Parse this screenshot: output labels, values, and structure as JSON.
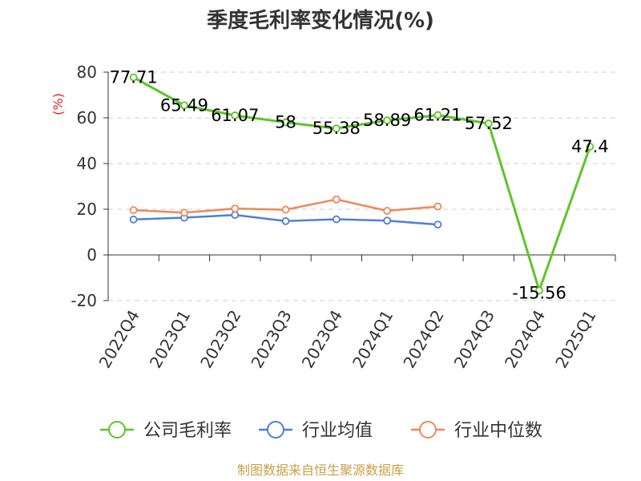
{
  "chart_data": {
    "type": "line",
    "title": "季度毛利率变化情况(%)",
    "unit_label": "(%)",
    "source": "制图数据来自恒生聚源数据库",
    "ylim": [
      -20,
      80
    ],
    "yticks": [
      -20,
      0,
      20,
      40,
      60,
      80
    ],
    "grid": true,
    "legend_position": "bottom",
    "categories": [
      "2022Q4",
      "2023Q1",
      "2023Q2",
      "2023Q3",
      "2023Q4",
      "2024Q1",
      "2024Q2",
      "2024Q3",
      "2024Q4",
      "2025Q1"
    ],
    "series": [
      {
        "name": "公司毛利率",
        "color": "#5ec42a",
        "values": [
          77.71,
          65.49,
          61.07,
          58,
          55.38,
          58.89,
          61.21,
          57.52,
          -15.56,
          47.4
        ],
        "labels": [
          "77.71",
          "65.49",
          "61.07",
          "58",
          "55.38",
          "58.89",
          "61.21",
          "57.52",
          "-15.56",
          "47.4"
        ]
      },
      {
        "name": "行业均值",
        "color": "#4e7fd8",
        "values": [
          15.5,
          16.3,
          17.5,
          14.8,
          15.6,
          15.0,
          13.3,
          null,
          null,
          null
        ]
      },
      {
        "name": "行业中位数",
        "color": "#f0875a",
        "values": [
          19.6,
          18.5,
          20.3,
          19.8,
          24.3,
          19.3,
          21.2,
          null,
          null,
          null
        ]
      }
    ]
  }
}
